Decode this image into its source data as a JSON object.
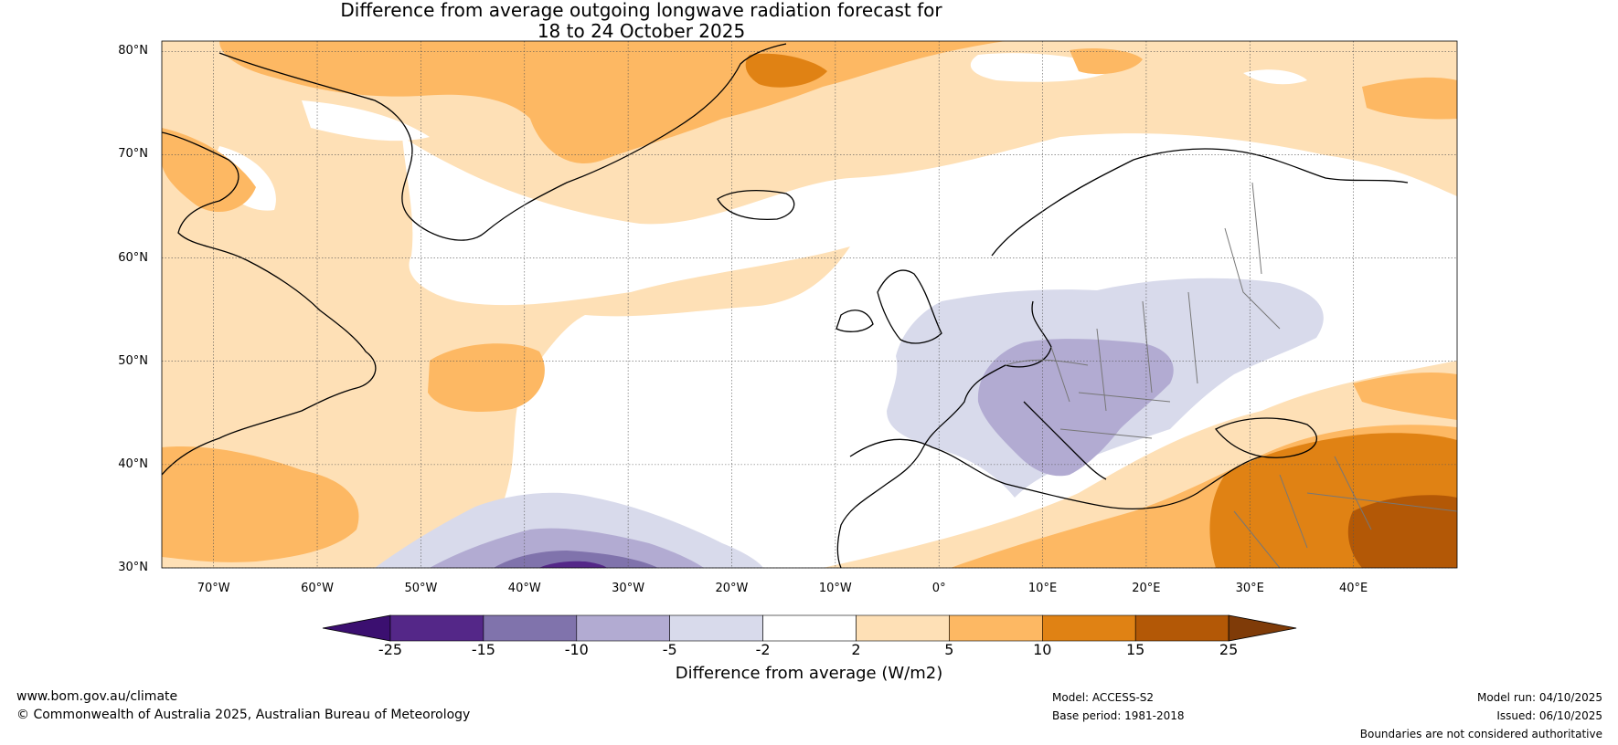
{
  "title": {
    "line1": "Difference from average outgoing longwave radiation forecast for",
    "line2": "18 to 24 October 2025"
  },
  "map": {
    "lat_labels": [
      "80°N",
      "70°N",
      "60°N",
      "50°N",
      "40°N",
      "30°N"
    ],
    "lon_labels": [
      "70°W",
      "60°W",
      "50°W",
      "40°W",
      "30°W",
      "20°W",
      "10°W",
      "0°",
      "10°E",
      "20°E",
      "30°E",
      "40°E"
    ],
    "lat_range": [
      30,
      81
    ],
    "lon_range": [
      -75,
      50
    ]
  },
  "legend": {
    "title": "Difference from average (W/m2)",
    "ticks": [
      "-25",
      "-15",
      "-10",
      "-5",
      "-2",
      "2",
      "5",
      "10",
      "15",
      "25"
    ],
    "colors": [
      "#3b0f70",
      "#542788",
      "#8073ac",
      "#b2abd2",
      "#d8daeb",
      "#ffffff",
      "#fee0b6",
      "#fdb863",
      "#e08214",
      "#b35806",
      "#7f3b08"
    ]
  },
  "footer": {
    "website": "www.bom.gov.au/climate",
    "copyright": "© Commonwealth of Australia 2025, Australian Bureau of Meteorology",
    "model": "Model: ACCESS-S2",
    "base_period": "Base period: 1981-2018",
    "model_run": "Model run: 04/10/2025",
    "issued": "Issued: 06/10/2025",
    "boundaries": "Boundaries are not considered authoritative"
  }
}
